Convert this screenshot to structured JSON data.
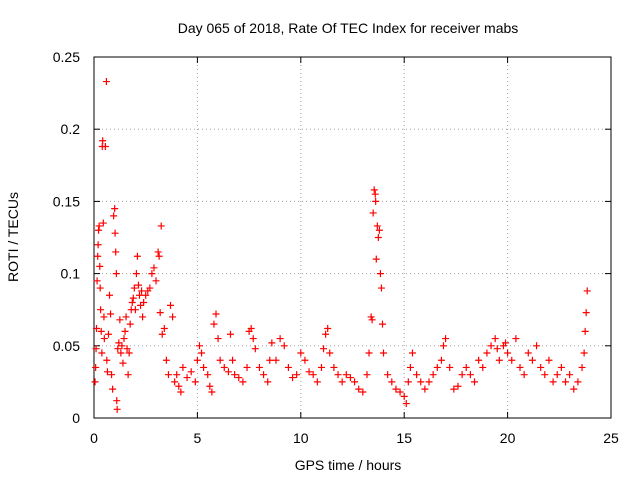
{
  "chart_data": {
    "type": "scatter",
    "title": "Day 065 of 2018, Rate Of TEC Index for receiver mabs",
    "xlabel": "GPS time / hours",
    "ylabel": "ROTI / TECUs",
    "xlim": [
      0,
      25
    ],
    "ylim": [
      0,
      0.25
    ],
    "x_ticks": [
      0,
      5,
      10,
      15,
      20,
      25
    ],
    "x_tick_labels": [
      "0",
      "5",
      "10",
      "15",
      "20",
      "25"
    ],
    "y_ticks": [
      0,
      0.05,
      0.1,
      0.15,
      0.2,
      0.25
    ],
    "y_tick_labels": [
      "0",
      "0.05",
      "0.1",
      "0.15",
      "0.2",
      "0.25"
    ],
    "grid": true,
    "legend": "none",
    "marker": "plus",
    "colors": {
      "marker": "#ff0000",
      "grid": "#a0a0a0",
      "axis": "#000000"
    },
    "series": [
      {
        "name": "ROTI",
        "points": [
          [
            0.05,
            0.025
          ],
          [
            0.08,
            0.035
          ],
          [
            0.1,
            0.048
          ],
          [
            0.12,
            0.062
          ],
          [
            0.15,
            0.095
          ],
          [
            0.18,
            0.112
          ],
          [
            0.2,
            0.12
          ],
          [
            0.22,
            0.13
          ],
          [
            0.25,
            0.133
          ],
          [
            0.28,
            0.105
          ],
          [
            0.3,
            0.09
          ],
          [
            0.32,
            0.075
          ],
          [
            0.35,
            0.06
          ],
          [
            0.38,
            0.045
          ],
          [
            0.4,
            0.188
          ],
          [
            0.42,
            0.192
          ],
          [
            0.45,
            0.135
          ],
          [
            0.48,
            0.07
          ],
          [
            0.5,
            0.055
          ],
          [
            0.55,
            0.188
          ],
          [
            0.6,
            0.233
          ],
          [
            0.62,
            0.04
          ],
          [
            0.65,
            0.032
          ],
          [
            0.7,
            0.058
          ],
          [
            0.75,
            0.085
          ],
          [
            0.8,
            0.072
          ],
          [
            0.85,
            0.03
          ],
          [
            0.9,
            0.02
          ],
          [
            0.95,
            0.14
          ],
          [
            1.0,
            0.145
          ],
          [
            1.02,
            0.128
          ],
          [
            1.05,
            0.115
          ],
          [
            1.08,
            0.1
          ],
          [
            1.1,
            0.012
          ],
          [
            1.12,
            0.006
          ],
          [
            1.15,
            0.048
          ],
          [
            1.2,
            0.052
          ],
          [
            1.25,
            0.068
          ],
          [
            1.3,
            0.045
          ],
          [
            1.35,
            0.05
          ],
          [
            1.4,
            0.038
          ],
          [
            1.45,
            0.055
          ],
          [
            1.5,
            0.06
          ],
          [
            1.55,
            0.07
          ],
          [
            1.6,
            0.048
          ],
          [
            1.65,
            0.03
          ],
          [
            1.7,
            0.045
          ],
          [
            1.75,
            0.065
          ],
          [
            1.8,
            0.075
          ],
          [
            1.85,
            0.08
          ],
          [
            1.9,
            0.083
          ],
          [
            1.95,
            0.09
          ],
          [
            2.0,
            0.075
          ],
          [
            2.05,
            0.1
          ],
          [
            2.1,
            0.112
          ],
          [
            2.15,
            0.092
          ],
          [
            2.2,
            0.085
          ],
          [
            2.25,
            0.078
          ],
          [
            2.3,
            0.088
          ],
          [
            2.35,
            0.07
          ],
          [
            2.4,
            0.08
          ],
          [
            2.5,
            0.085
          ],
          [
            2.6,
            0.088
          ],
          [
            2.7,
            0.09
          ],
          [
            2.8,
            0.1
          ],
          [
            2.9,
            0.104
          ],
          [
            3.0,
            0.095
          ],
          [
            3.1,
            0.115
          ],
          [
            3.15,
            0.112
          ],
          [
            3.2,
            0.073
          ],
          [
            3.25,
            0.133
          ],
          [
            3.3,
            0.058
          ],
          [
            3.4,
            0.062
          ],
          [
            3.5,
            0.04
          ],
          [
            3.6,
            0.03
          ],
          [
            3.7,
            0.078
          ],
          [
            3.8,
            0.07
          ],
          [
            3.9,
            0.025
          ],
          [
            4.0,
            0.03
          ],
          [
            4.1,
            0.022
          ],
          [
            4.2,
            0.018
          ],
          [
            4.3,
            0.035
          ],
          [
            4.5,
            0.028
          ],
          [
            4.7,
            0.032
          ],
          [
            4.9,
            0.025
          ],
          [
            5.0,
            0.04
          ],
          [
            5.1,
            0.05
          ],
          [
            5.2,
            0.045
          ],
          [
            5.3,
            0.035
          ],
          [
            5.5,
            0.03
          ],
          [
            5.6,
            0.022
          ],
          [
            5.7,
            0.018
          ],
          [
            5.8,
            0.065
          ],
          [
            5.9,
            0.072
          ],
          [
            6.0,
            0.055
          ],
          [
            6.1,
            0.04
          ],
          [
            6.3,
            0.035
          ],
          [
            6.5,
            0.032
          ],
          [
            6.6,
            0.058
          ],
          [
            6.7,
            0.04
          ],
          [
            6.8,
            0.03
          ],
          [
            7.0,
            0.028
          ],
          [
            7.2,
            0.025
          ],
          [
            7.4,
            0.035
          ],
          [
            7.5,
            0.06
          ],
          [
            7.6,
            0.062
          ],
          [
            7.7,
            0.055
          ],
          [
            7.8,
            0.048
          ],
          [
            8.0,
            0.035
          ],
          [
            8.2,
            0.03
          ],
          [
            8.4,
            0.025
          ],
          [
            8.5,
            0.04
          ],
          [
            8.6,
            0.052
          ],
          [
            8.8,
            0.04
          ],
          [
            9.0,
            0.055
          ],
          [
            9.2,
            0.05
          ],
          [
            9.4,
            0.035
          ],
          [
            9.6,
            0.028
          ],
          [
            9.8,
            0.03
          ],
          [
            10.0,
            0.045
          ],
          [
            10.2,
            0.04
          ],
          [
            10.4,
            0.032
          ],
          [
            10.6,
            0.03
          ],
          [
            10.8,
            0.025
          ],
          [
            11.0,
            0.035
          ],
          [
            11.1,
            0.048
          ],
          [
            11.2,
            0.058
          ],
          [
            11.3,
            0.062
          ],
          [
            11.4,
            0.045
          ],
          [
            11.6,
            0.035
          ],
          [
            11.8,
            0.03
          ],
          [
            12.0,
            0.025
          ],
          [
            12.2,
            0.03
          ],
          [
            12.4,
            0.028
          ],
          [
            12.6,
            0.025
          ],
          [
            12.8,
            0.02
          ],
          [
            13.0,
            0.018
          ],
          [
            13.2,
            0.03
          ],
          [
            13.3,
            0.045
          ],
          [
            13.4,
            0.07
          ],
          [
            13.45,
            0.068
          ],
          [
            13.5,
            0.142
          ],
          [
            13.55,
            0.158
          ],
          [
            13.6,
            0.155
          ],
          [
            13.62,
            0.15
          ],
          [
            13.65,
            0.11
          ],
          [
            13.7,
            0.133
          ],
          [
            13.75,
            0.125
          ],
          [
            13.8,
            0.13
          ],
          [
            13.85,
            0.1
          ],
          [
            13.9,
            0.09
          ],
          [
            13.95,
            0.065
          ],
          [
            14.0,
            0.045
          ],
          [
            14.2,
            0.03
          ],
          [
            14.4,
            0.025
          ],
          [
            14.6,
            0.02
          ],
          [
            14.8,
            0.018
          ],
          [
            15.0,
            0.015
          ],
          [
            15.1,
            0.01
          ],
          [
            15.2,
            0.025
          ],
          [
            15.3,
            0.035
          ],
          [
            15.4,
            0.045
          ],
          [
            15.6,
            0.03
          ],
          [
            15.8,
            0.025
          ],
          [
            16.0,
            0.02
          ],
          [
            16.2,
            0.025
          ],
          [
            16.4,
            0.03
          ],
          [
            16.6,
            0.035
          ],
          [
            16.8,
            0.04
          ],
          [
            16.9,
            0.05
          ],
          [
            17.0,
            0.055
          ],
          [
            17.2,
            0.035
          ],
          [
            17.4,
            0.02
          ],
          [
            17.6,
            0.022
          ],
          [
            17.8,
            0.03
          ],
          [
            18.0,
            0.035
          ],
          [
            18.2,
            0.03
          ],
          [
            18.4,
            0.025
          ],
          [
            18.6,
            0.04
          ],
          [
            18.8,
            0.035
          ],
          [
            19.0,
            0.045
          ],
          [
            19.2,
            0.05
          ],
          [
            19.4,
            0.055
          ],
          [
            19.5,
            0.048
          ],
          [
            19.6,
            0.04
          ],
          [
            19.8,
            0.05
          ],
          [
            19.9,
            0.052
          ],
          [
            20.0,
            0.045
          ],
          [
            20.2,
            0.04
          ],
          [
            20.4,
            0.055
          ],
          [
            20.6,
            0.035
          ],
          [
            20.8,
            0.03
          ],
          [
            21.0,
            0.045
          ],
          [
            21.2,
            0.04
          ],
          [
            21.4,
            0.05
          ],
          [
            21.6,
            0.035
          ],
          [
            21.8,
            0.03
          ],
          [
            22.0,
            0.04
          ],
          [
            22.2,
            0.025
          ],
          [
            22.4,
            0.03
          ],
          [
            22.6,
            0.035
          ],
          [
            22.8,
            0.025
          ],
          [
            23.0,
            0.03
          ],
          [
            23.2,
            0.02
          ],
          [
            23.4,
            0.025
          ],
          [
            23.6,
            0.035
          ],
          [
            23.7,
            0.045
          ],
          [
            23.75,
            0.06
          ],
          [
            23.8,
            0.073
          ],
          [
            23.85,
            0.088
          ]
        ]
      }
    ]
  }
}
